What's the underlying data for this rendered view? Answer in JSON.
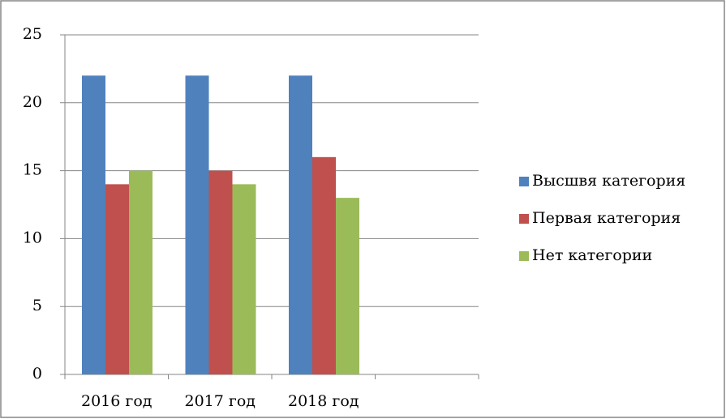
{
  "chart_data": {
    "type": "bar",
    "categories": [
      "2016 год",
      "2017 год",
      "2018 год",
      null
    ],
    "series": [
      {
        "name": "Высшвя категория",
        "color": "#4f81bd",
        "values": [
          22,
          22,
          22,
          null
        ]
      },
      {
        "name": "Первая категория",
        "color": "#c0504d",
        "values": [
          14,
          15,
          16,
          null
        ]
      },
      {
        "name": "Нет категории",
        "color": "#9bbb59",
        "values": [
          15,
          14,
          13,
          null
        ]
      }
    ],
    "ylim": [
      0,
      25
    ],
    "yticks": [
      0,
      5,
      10,
      15,
      20,
      25
    ],
    "grid": true,
    "legend": "right"
  }
}
